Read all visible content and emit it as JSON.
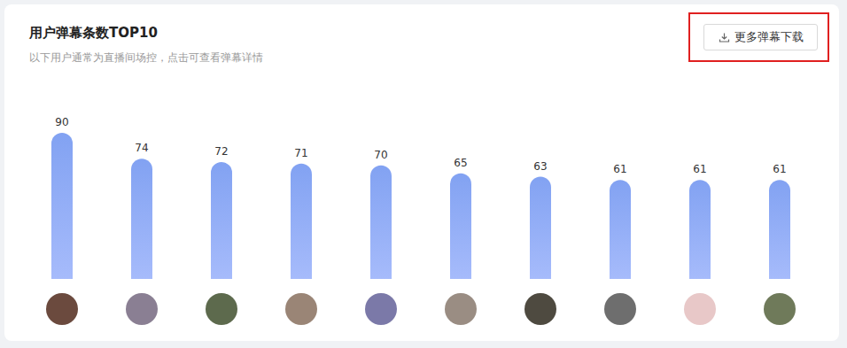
{
  "chart_data": {
    "type": "bar",
    "title": "用户弹幕条数TOP10",
    "subtitle": "以下用户通常为直播间场控，点击可查看弹幕详情",
    "annotations": [
      "更多弹幕下载"
    ],
    "categories": [
      null,
      null,
      null,
      null,
      null,
      null,
      null,
      null,
      null,
      null
    ],
    "values": [
      90,
      74,
      72,
      71,
      70,
      65,
      63,
      61,
      61,
      61
    ],
    "color": "#82a2f2",
    "ylim": [
      0,
      90
    ],
    "data_labels": true,
    "tick_labels": false,
    "grid": false
  }
}
